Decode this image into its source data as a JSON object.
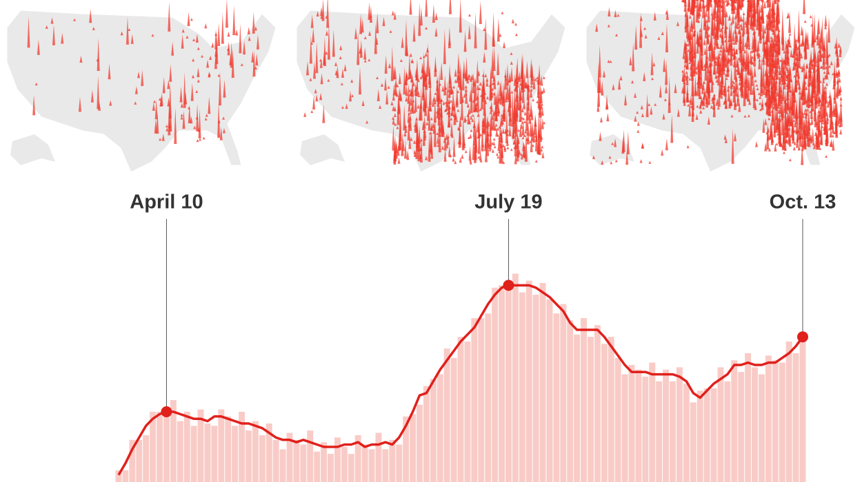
{
  "chart_data": {
    "type": "bar",
    "categories": [
      null,
      null,
      null,
      null,
      null,
      null,
      null,
      "April 10",
      null,
      null,
      null,
      null,
      null,
      null,
      null,
      null,
      null,
      null,
      null,
      null,
      null,
      null,
      null,
      null,
      null,
      null,
      null,
      null,
      null,
      null,
      null,
      null,
      null,
      null,
      null,
      null,
      null,
      null,
      null,
      null,
      null,
      null,
      null,
      null,
      null,
      null,
      null,
      null,
      null,
      null,
      null,
      null,
      null,
      null,
      null,
      null,
      null,
      "July 19",
      null,
      null,
      null,
      null,
      null,
      null,
      null,
      null,
      null,
      null,
      null,
      null,
      null,
      null,
      null,
      null,
      null,
      null,
      null,
      null,
      null,
      null,
      null,
      null,
      null,
      null,
      null,
      null,
      null,
      null,
      null,
      null,
      null,
      null,
      null,
      null,
      null,
      null,
      null,
      null,
      null,
      null,
      "Oct. 13"
    ],
    "ylim": [
      0,
      100
    ],
    "series": [
      {
        "type": "bar",
        "color": "#f9cbc7",
        "values": [
          5,
          5,
          18,
          18,
          20,
          30,
          30,
          28,
          35,
          26,
          30,
          24,
          31,
          25,
          24,
          31,
          28,
          24,
          30,
          22,
          26,
          20,
          25,
          18,
          14,
          21,
          18,
          16,
          22,
          13,
          17,
          12,
          19,
          15,
          12,
          20,
          16,
          14,
          21,
          14,
          18,
          16,
          28,
          29,
          33,
          41,
          44,
          46,
          57,
          53,
          62,
          60,
          70,
          70,
          72,
          83,
          84,
          82,
          89,
          81,
          86,
          80,
          85,
          78,
          72,
          76,
          69,
          63,
          70,
          62,
          67,
          59,
          62,
          53,
          46,
          50,
          48,
          45,
          51,
          43,
          48,
          43,
          49,
          42,
          34,
          39,
          40,
          40,
          49,
          43,
          52,
          47,
          55,
          49,
          46,
          54,
          52,
          51,
          60,
          55,
          64
        ]
      },
      {
        "type": "line",
        "color": "#e0201b",
        "values": [
          3,
          8,
          14,
          19,
          24,
          27,
          29,
          30,
          30,
          29,
          28,
          27,
          27,
          26,
          28,
          28,
          27,
          26,
          25,
          25,
          24,
          23,
          21,
          19,
          18,
          18,
          17,
          18,
          17,
          16,
          15,
          15,
          15,
          16,
          16,
          17,
          15,
          16,
          16,
          17,
          16,
          19,
          24,
          30,
          37,
          38,
          43,
          48,
          52,
          56,
          60,
          63,
          66,
          71,
          76,
          80,
          83,
          84,
          84,
          84,
          84,
          83,
          81,
          79,
          76,
          73,
          68,
          65,
          65,
          65,
          65,
          62,
          58,
          54,
          50,
          47,
          47,
          47,
          46,
          46,
          46,
          46,
          45,
          43,
          38,
          36,
          39,
          42,
          44,
          46,
          50,
          50,
          51,
          50,
          50,
          51,
          51,
          53,
          55,
          58,
          62
        ]
      }
    ]
  }
}
